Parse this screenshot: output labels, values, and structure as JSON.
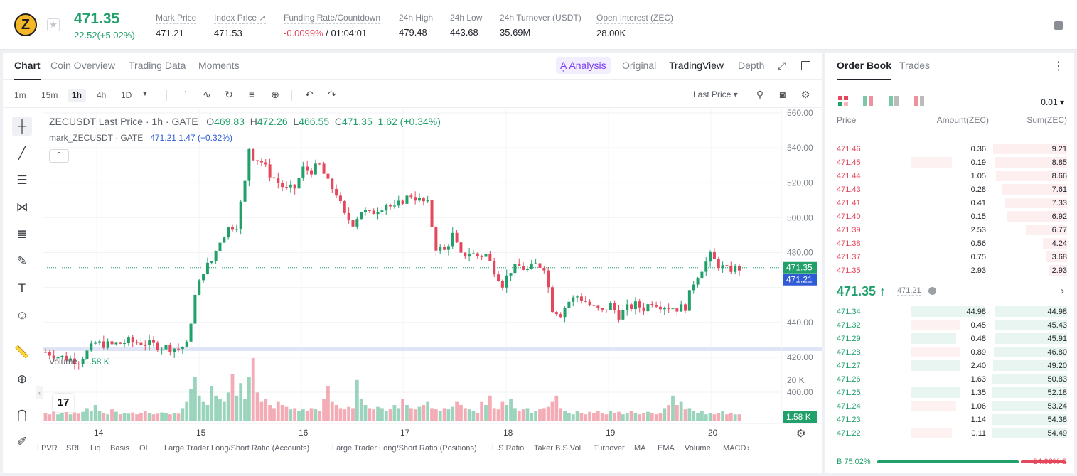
{
  "ticker": {
    "logo_letter": "Z",
    "last_price": "471.35",
    "change": "22.52(+5.02%)",
    "stats": [
      {
        "label": "Mark Price",
        "value": "471.21"
      },
      {
        "label": "Index Price ↗",
        "value": "471.53"
      },
      {
        "label": "Funding Rate/Countdown",
        "value_neg": "-0.0099%",
        "value": " / 01:04:01"
      },
      {
        "label": "24h High",
        "value": "479.48"
      },
      {
        "label": "24h Low",
        "value": "443.68"
      },
      {
        "label": "24h Turnover (USDT)",
        "value": "35.69M"
      },
      {
        "label": "Open Interest (ZEC)",
        "value": "28.00K"
      }
    ]
  },
  "chart_tabs": [
    "Chart",
    "Coin Overview",
    "Trading Data",
    "Moments"
  ],
  "view_tabs": {
    "ai": "A͙ Analysis",
    "original": "Original",
    "tradingview": "TradingView",
    "depth": "Depth"
  },
  "timeframes": [
    "1m",
    "15m",
    "1h",
    "4h",
    "1D"
  ],
  "price_type": "Last Price",
  "legend": {
    "symbol": "ZECUSDT Last Price · 1h · GATE",
    "o": "469.83",
    "h": "472.26",
    "l": "466.55",
    "c": "471.35",
    "chg": "1.62 (+0.34%)",
    "mark": "mark_ZECUSDT · GATE",
    "mark_val": "471.21 1.47 (+0.32%)",
    "volume_label": "Volume",
    "volume_val": "1.58 K"
  },
  "indicators": [
    "LPVR",
    "SRL",
    "Liq",
    "Basis",
    "OI",
    "Large Trader Long/Short Ratio (Accounts)",
    "Large Trader Long/Short Ratio (Positions)",
    "L.S Ratio",
    "Taker B.S Vol.",
    "Turnover",
    "MA",
    "EMA",
    "Volume",
    "MACD"
  ],
  "chart_data": {
    "type": "candlestick",
    "price_ticks": [
      560,
      540,
      520,
      500,
      480,
      460,
      440,
      420,
      400
    ],
    "price_tick_labels": [
      "560.00",
      "540.00",
      "520.00",
      "500.00",
      "480.00",
      "",
      "440.00",
      "420.00",
      "400.00"
    ],
    "volume_tick_label": "20 K",
    "date_ticks": [
      "14",
      "15",
      "16",
      "17",
      "18",
      "19",
      "20"
    ],
    "last_price_tag": "471.35",
    "mark_price_tag": "471.21",
    "volume_tag": "1.58 K",
    "trend": [
      [
        0,
        423
      ],
      [
        4,
        420
      ],
      [
        8,
        418
      ],
      [
        12,
        428
      ],
      [
        16,
        427
      ],
      [
        20,
        429
      ],
      [
        24,
        428
      ],
      [
        28,
        426
      ],
      [
        32,
        425
      ],
      [
        34,
        427
      ],
      [
        36,
        455
      ],
      [
        38,
        470
      ],
      [
        40,
        475
      ],
      [
        42,
        487
      ],
      [
        44,
        494
      ],
      [
        46,
        496
      ],
      [
        48,
        520
      ],
      [
        49,
        540
      ],
      [
        50,
        535
      ],
      [
        52,
        532
      ],
      [
        54,
        525
      ],
      [
        56,
        520
      ],
      [
        58,
        516
      ],
      [
        60,
        517
      ],
      [
        62,
        528
      ],
      [
        64,
        527
      ],
      [
        66,
        530
      ],
      [
        68,
        520
      ],
      [
        70,
        514
      ],
      [
        72,
        501
      ],
      [
        74,
        497
      ],
      [
        76,
        504
      ],
      [
        78,
        502
      ],
      [
        80,
        505
      ],
      [
        82,
        508
      ],
      [
        84,
        505
      ],
      [
        86,
        510
      ],
      [
        88,
        513
      ],
      [
        90,
        510
      ],
      [
        92,
        508
      ],
      [
        94,
        483
      ],
      [
        96,
        481
      ],
      [
        98,
        490
      ],
      [
        100,
        478
      ],
      [
        102,
        480
      ],
      [
        104,
        478
      ],
      [
        106,
        479
      ],
      [
        108,
        470
      ],
      [
        110,
        462
      ],
      [
        112,
        470
      ],
      [
        114,
        472
      ],
      [
        116,
        470
      ],
      [
        118,
        473
      ],
      [
        120,
        472
      ],
      [
        122,
        448
      ],
      [
        124,
        445
      ],
      [
        126,
        452
      ],
      [
        128,
        455
      ],
      [
        130,
        452
      ],
      [
        132,
        448
      ],
      [
        134,
        446
      ],
      [
        136,
        450
      ],
      [
        138,
        444
      ],
      [
        140,
        448
      ],
      [
        142,
        450
      ],
      [
        144,
        448
      ],
      [
        146,
        452
      ],
      [
        148,
        450
      ],
      [
        150,
        449
      ],
      [
        152,
        448
      ],
      [
        154,
        449
      ],
      [
        156,
        463
      ],
      [
        158,
        471
      ],
      [
        160,
        478
      ],
      [
        162,
        473
      ],
      [
        164,
        470
      ],
      [
        166,
        471
      ],
      [
        168,
        471
      ]
    ],
    "volume_profile": [
      0.12,
      0.1,
      0.15,
      0.1,
      0.12,
      0.15,
      0.1,
      0.13,
      0.11,
      0.14,
      0.2,
      0.16,
      0.25,
      0.15,
      0.12,
      0.1,
      0.18,
      0.14,
      0.1,
      0.12,
      0.11,
      0.13,
      0.1,
      0.12,
      0.15,
      0.12,
      0.1,
      0.11,
      0.13,
      0.12,
      0.1,
      0.12,
      0.11,
      0.2,
      0.3,
      0.5,
      0.7,
      0.4,
      0.3,
      0.25,
      0.55,
      0.4,
      0.35,
      0.3,
      0.45,
      0.75,
      0.4,
      0.6,
      0.35,
      0.7,
      1.0,
      0.45,
      0.3,
      0.35,
      0.25,
      0.2,
      0.3,
      0.25,
      0.22,
      0.18,
      0.2,
      0.15,
      0.18,
      0.16,
      0.2,
      0.18,
      0.15,
      0.35,
      0.55,
      0.3,
      0.25,
      0.2,
      0.18,
      0.22,
      0.2,
      0.65,
      0.35,
      0.25,
      0.2,
      0.18,
      0.22,
      0.2,
      0.15,
      0.18,
      0.25,
      0.2,
      0.35,
      0.25,
      0.2,
      0.18,
      0.22,
      0.25,
      0.3,
      0.2,
      0.18,
      0.15,
      0.2,
      0.18,
      0.22,
      0.3,
      0.25,
      0.2,
      0.18,
      0.15,
      0.12,
      0.3,
      0.25,
      0.4,
      0.2,
      0.18,
      0.3,
      0.25,
      0.35,
      0.2,
      0.15,
      0.18,
      0.2,
      0.12,
      0.15,
      0.18,
      0.2,
      0.22,
      0.3,
      0.4,
      0.2,
      0.15,
      0.12,
      0.1,
      0.15,
      0.12,
      0.1,
      0.14,
      0.12,
      0.15,
      0.12,
      0.1,
      0.15,
      0.12,
      0.14,
      0.1,
      0.12,
      0.15,
      0.12,
      0.1,
      0.12,
      0.14,
      0.12,
      0.1,
      0.12,
      0.2,
      0.25,
      0.4,
      0.25,
      0.3,
      0.18,
      0.2,
      0.15,
      0.12,
      0.15,
      0.1,
      0.12,
      0.1,
      0.12,
      0.15,
      0.1,
      0.12
    ]
  },
  "order_book": {
    "tabs": [
      "Order Book",
      "Trades"
    ],
    "precision": "0.01",
    "headers": [
      "Price",
      "Amount(ZEC)",
      "Sum(ZEC)"
    ],
    "asks": [
      {
        "p": "471.46",
        "a": "0.36",
        "s": "9.21",
        "af": 0.0,
        "sf": 0.98
      },
      {
        "p": "471.45",
        "a": "0.19",
        "s": "8.85",
        "af": 0.5,
        "sf": 0.96
      },
      {
        "p": "471.44",
        "a": "1.05",
        "s": "8.66",
        "af": 0.0,
        "sf": 0.94
      },
      {
        "p": "471.43",
        "a": "0.28",
        "s": "7.61",
        "af": 0.0,
        "sf": 0.86
      },
      {
        "p": "471.41",
        "a": "0.41",
        "s": "7.33",
        "af": 0.0,
        "sf": 0.82
      },
      {
        "p": "471.40",
        "a": "0.15",
        "s": "6.92",
        "af": 0.0,
        "sf": 0.8
      },
      {
        "p": "471.39",
        "a": "2.53",
        "s": "6.77",
        "af": 0.0,
        "sf": 0.55
      },
      {
        "p": "471.38",
        "a": "0.56",
        "s": "4.24",
        "af": 0.0,
        "sf": 0.32
      },
      {
        "p": "471.37",
        "a": "0.75",
        "s": "3.68",
        "af": 0.0,
        "sf": 0.28
      },
      {
        "p": "471.35",
        "a": "2.93",
        "s": "2.93",
        "af": 0.0,
        "sf": 0.24
      }
    ],
    "mid": {
      "price": "471.35 ↑",
      "mark": "471.21"
    },
    "bids": [
      {
        "p": "471.34",
        "a": "44.98",
        "s": "44.98",
        "af": 0.9,
        "sf": 0.95
      },
      {
        "p": "471.32",
        "a": "0.45",
        "s": "45.43",
        "af": 0.6,
        "sf": 0.96
      },
      {
        "p": "471.29",
        "a": "0.48",
        "s": "45.91",
        "af": 0.55,
        "sf": 0.96
      },
      {
        "p": "471.28",
        "a": "0.89",
        "s": "46.80",
        "af": 0.6,
        "sf": 0.97
      },
      {
        "p": "471.27",
        "a": "2.40",
        "s": "49.20",
        "af": 0.6,
        "sf": 0.98
      },
      {
        "p": "471.26",
        "a": "1.63",
        "s": "50.83",
        "af": 0.0,
        "sf": 0.99
      },
      {
        "p": "471.25",
        "a": "1.35",
        "s": "52.18",
        "af": 0.6,
        "sf": 0.99
      },
      {
        "p": "471.24",
        "a": "1.06",
        "s": "53.24",
        "af": 0.55,
        "sf": 0.99
      },
      {
        "p": "471.23",
        "a": "1.14",
        "s": "54.38",
        "af": 0.0,
        "sf": 0.99
      },
      {
        "p": "471.22",
        "a": "0.11",
        "s": "54.49",
        "af": 0.5,
        "sf": 1.0
      }
    ],
    "buy_label": "B 75.02%",
    "sell_label": "24.98% S",
    "buy_fraction": 0.7502
  },
  "colors": {
    "up": "#22a06b",
    "down": "#e5485c",
    "accent": "#7b3ff2",
    "mark": "#2f5bd6"
  }
}
